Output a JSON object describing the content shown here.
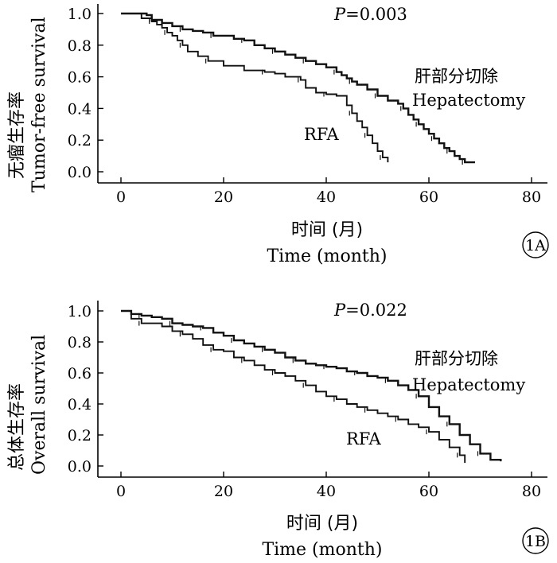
{
  "chart_data": [
    {
      "type": "line",
      "panel_label": "1A",
      "p_value_prefix": "P",
      "p_value_rest": "=0.003",
      "ylabel_cn": "无瘤生存率",
      "ylabel_en": "Tumor-free survival",
      "xlabel_cn": "时间 (月)",
      "xlabel_en": "Time  (month)",
      "xlim": [
        0,
        80
      ],
      "ylim": [
        0,
        1
      ],
      "x_ticks": [
        "0",
        "20",
        "40",
        "60",
        "80"
      ],
      "y_ticks": [
        "0.0",
        "0.2",
        "0.4",
        "0.6",
        "0.8",
        "1.0"
      ],
      "series": [
        {
          "name": "Hepatectomy",
          "label_cn": "肝部分切除",
          "label_en": "Hepatectomy",
          "x": [
            0,
            5,
            6,
            8,
            10,
            12,
            14,
            16,
            18,
            20,
            22,
            24,
            26,
            28,
            30,
            32,
            34,
            36,
            38,
            40,
            42,
            43,
            44,
            45,
            46,
            48,
            50,
            52,
            54,
            55,
            56,
            57,
            58,
            59,
            60,
            61,
            62,
            63,
            64,
            65,
            66,
            67,
            69
          ],
          "y": [
            1.0,
            0.99,
            0.96,
            0.94,
            0.92,
            0.9,
            0.89,
            0.88,
            0.86,
            0.86,
            0.84,
            0.83,
            0.8,
            0.78,
            0.76,
            0.74,
            0.72,
            0.7,
            0.68,
            0.66,
            0.63,
            0.61,
            0.59,
            0.57,
            0.55,
            0.52,
            0.48,
            0.45,
            0.43,
            0.4,
            0.36,
            0.33,
            0.3,
            0.27,
            0.24,
            0.21,
            0.18,
            0.15,
            0.13,
            0.1,
            0.08,
            0.06,
            0.06
          ]
        },
        {
          "name": "RFA",
          "label_en": "RFA",
          "x": [
            0,
            4,
            6,
            7,
            8,
            9,
            10,
            11,
            12,
            13,
            15,
            17,
            20,
            24,
            28,
            30,
            32,
            35,
            36,
            38,
            40,
            42,
            44,
            45,
            46,
            47,
            48,
            49,
            50,
            51,
            52
          ],
          "y": [
            1.0,
            0.97,
            0.95,
            0.93,
            0.91,
            0.88,
            0.86,
            0.83,
            0.8,
            0.76,
            0.73,
            0.7,
            0.67,
            0.64,
            0.63,
            0.62,
            0.6,
            0.58,
            0.53,
            0.5,
            0.49,
            0.48,
            0.42,
            0.37,
            0.32,
            0.28,
            0.23,
            0.18,
            0.13,
            0.09,
            0.06
          ]
        }
      ]
    },
    {
      "type": "line",
      "panel_label": "1B",
      "p_value_prefix": "P",
      "p_value_rest": "=0.022",
      "ylabel_cn": "总体生存率",
      "ylabel_en": "Overall survival",
      "xlabel_cn": "时间 (月)",
      "xlabel_en": "Time  (month)",
      "xlim": [
        0,
        80
      ],
      "ylim": [
        0,
        1
      ],
      "x_ticks": [
        "0",
        "20",
        "40",
        "60",
        "80"
      ],
      "y_ticks": [
        "0.0",
        "0.2",
        "0.4",
        "0.6",
        "0.8",
        "1.0"
      ],
      "series": [
        {
          "name": "Hepatectomy",
          "label_cn": "肝部分切除",
          "label_en": "Hepatectomy",
          "x": [
            0,
            2,
            4,
            6,
            8,
            10,
            12,
            14,
            16,
            18,
            20,
            22,
            24,
            26,
            28,
            30,
            32,
            34,
            36,
            38,
            40,
            42,
            44,
            46,
            48,
            50,
            52,
            54,
            56,
            58,
            60,
            62,
            64,
            66,
            68,
            70,
            72,
            74
          ],
          "y": [
            1.0,
            0.98,
            0.97,
            0.96,
            0.95,
            0.92,
            0.91,
            0.9,
            0.89,
            0.86,
            0.84,
            0.81,
            0.79,
            0.77,
            0.75,
            0.73,
            0.7,
            0.68,
            0.66,
            0.65,
            0.64,
            0.63,
            0.61,
            0.6,
            0.58,
            0.57,
            0.55,
            0.52,
            0.49,
            0.45,
            0.38,
            0.32,
            0.27,
            0.2,
            0.14,
            0.08,
            0.04,
            0.03
          ]
        },
        {
          "name": "RFA",
          "label_en": "RFA",
          "x": [
            0,
            2,
            4,
            8,
            10,
            12,
            14,
            16,
            18,
            20,
            22,
            24,
            26,
            28,
            30,
            32,
            34,
            36,
            38,
            40,
            42,
            44,
            46,
            48,
            50,
            52,
            54,
            56,
            58,
            60,
            62,
            64,
            66,
            67
          ],
          "y": [
            1.0,
            0.95,
            0.92,
            0.9,
            0.87,
            0.85,
            0.82,
            0.78,
            0.75,
            0.74,
            0.7,
            0.68,
            0.65,
            0.62,
            0.6,
            0.58,
            0.55,
            0.52,
            0.48,
            0.45,
            0.43,
            0.4,
            0.38,
            0.36,
            0.34,
            0.32,
            0.3,
            0.27,
            0.25,
            0.22,
            0.17,
            0.12,
            0.07,
            0.02
          ]
        }
      ]
    }
  ]
}
